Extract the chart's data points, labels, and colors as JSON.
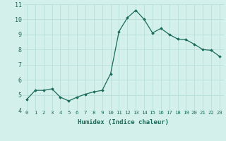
{
  "x": [
    0,
    1,
    2,
    3,
    4,
    5,
    6,
    7,
    8,
    9,
    10,
    11,
    12,
    13,
    14,
    15,
    16,
    17,
    18,
    19,
    20,
    21,
    22,
    23
  ],
  "y": [
    4.7,
    5.3,
    5.3,
    5.4,
    4.85,
    4.6,
    4.85,
    5.05,
    5.2,
    5.3,
    6.4,
    9.2,
    10.1,
    10.6,
    10.0,
    9.1,
    9.4,
    9.0,
    8.7,
    8.65,
    8.35,
    8.0,
    7.95,
    7.55
  ],
  "xlim": [
    -0.5,
    23.5
  ],
  "ylim": [
    4.0,
    11.0
  ],
  "yticks": [
    4,
    5,
    6,
    7,
    8,
    9,
    10,
    11
  ],
  "xticks": [
    0,
    1,
    2,
    3,
    4,
    5,
    6,
    7,
    8,
    9,
    10,
    11,
    12,
    13,
    14,
    15,
    16,
    17,
    18,
    19,
    20,
    21,
    22,
    23
  ],
  "xlabel": "Humidex (Indice chaleur)",
  "line_color": "#1a6b5a",
  "marker": "D",
  "marker_size": 1.8,
  "bg_color": "#d4f0eb",
  "grid_color": "#b8ddd8",
  "tick_color": "#1a6b5a",
  "label_fontsize": 5.2,
  "ylabel_fontsize": 6.0,
  "xlabel_fontsize": 6.5
}
